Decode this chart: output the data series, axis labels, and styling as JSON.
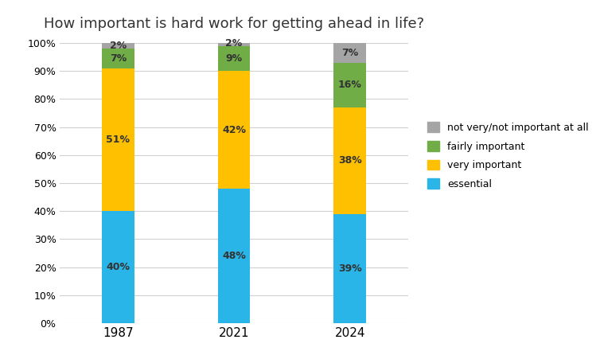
{
  "title": "How important is hard work for getting ahead in life?",
  "categories": [
    "1987",
    "2021",
    "2024"
  ],
  "series": {
    "essential": [
      40,
      48,
      39
    ],
    "very important": [
      51,
      42,
      38
    ],
    "fairly important": [
      7,
      9,
      16
    ],
    "not very/not important at all": [
      2,
      2,
      7
    ]
  },
  "colors": {
    "essential": "#29B5E8",
    "very important": "#FFC000",
    "fairly important": "#70AD47",
    "not very/not important at all": "#A5A5A5"
  },
  "ylim": [
    0,
    100
  ],
  "yticks": [
    0,
    10,
    20,
    30,
    40,
    50,
    60,
    70,
    80,
    90,
    100
  ],
  "yticklabels": [
    "0%",
    "10%",
    "20%",
    "30%",
    "40%",
    "50%",
    "60%",
    "70%",
    "80%",
    "90%",
    "100%"
  ],
  "bar_width": 0.28,
  "title_fontsize": 13,
  "label_fontsize": 9,
  "tick_fontsize": 9,
  "legend_fontsize": 9,
  "background_color": "#FFFFFF",
  "grid_color": "#D0D0D0"
}
